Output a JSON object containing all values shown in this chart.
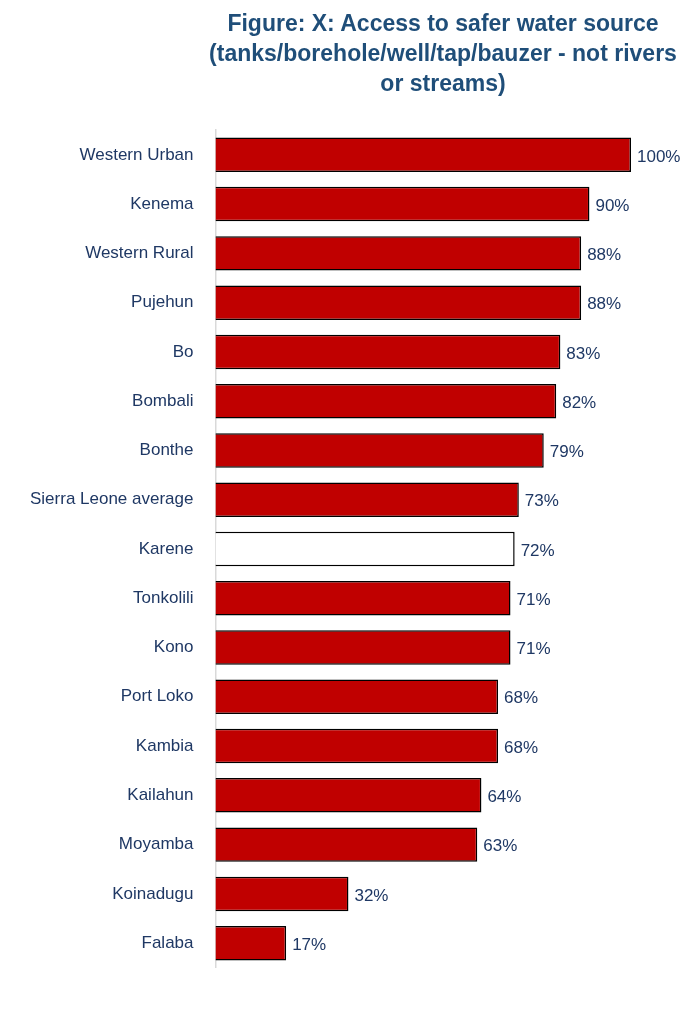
{
  "chart_data": {
    "type": "bar",
    "orientation": "horizontal",
    "title": "Figure: X: Access to safer water source (tanks/borehole/well/tap/bauzer - not rivers or streams)",
    "categories": [
      "Western Urban",
      "Kenema",
      "Western Rural",
      "Pujehun",
      "Bo",
      "Bombali",
      "Bonthe",
      "Sierra Leone average",
      "Karene",
      "Tonkolili",
      "Kono",
      "Port Loko",
      "Kambia",
      "Kailahun",
      "Moyamba",
      "Koinadugu",
      "Falaba"
    ],
    "values": [
      100,
      90,
      88,
      88,
      83,
      82,
      79,
      73,
      72,
      71,
      71,
      68,
      68,
      64,
      63,
      32,
      17
    ],
    "value_labels": [
      "100%",
      "90%",
      "88%",
      "88%",
      "83%",
      "82%",
      "79%",
      "73%",
      "72%",
      "71%",
      "71%",
      "68%",
      "68%",
      "64%",
      "63%",
      "32%",
      "17%"
    ],
    "colors": [
      "#c00000",
      "#c00000",
      "#c00000",
      "#c00000",
      "#c00000",
      "#c00000",
      "#c00000",
      "#c00000",
      "#ffffff",
      "#c00000",
      "#c00000",
      "#c00000",
      "#c00000",
      "#c00000",
      "#c00000",
      "#c00000",
      "#c00000"
    ],
    "xlim": [
      0,
      100
    ],
    "grid": false,
    "legend": false
  }
}
